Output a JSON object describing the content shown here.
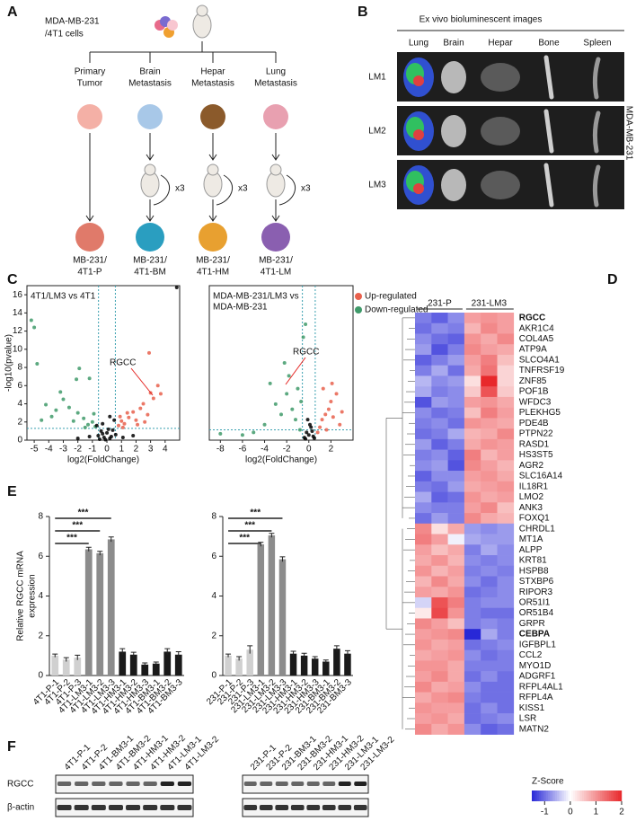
{
  "panel_labels": [
    "A",
    "B",
    "C",
    "D",
    "E",
    "F"
  ],
  "diagram": {
    "source": [
      "MDA-MB-231",
      "/4T1 cells"
    ],
    "repeat": "x3",
    "branches": [
      {
        "label": [
          "Primary",
          "Tumor"
        ],
        "result": [
          "MB-231/",
          "4T1-P"
        ]
      },
      {
        "label": [
          "Brain",
          "Metastasis"
        ],
        "result": [
          "MB-231/",
          "4T1-BM"
        ]
      },
      {
        "label": [
          "Hepar",
          "Metastasis"
        ],
        "result": [
          "MB-231/",
          "4T1-HM"
        ]
      },
      {
        "label": [
          "Lung",
          "Metastasis"
        ],
        "result": [
          "MB-231/",
          "4T1-LM"
        ]
      }
    ]
  },
  "imaging": {
    "title": "Ex vivo bioluminescent images",
    "organs": [
      "Lung",
      "Brain",
      "Hepar",
      "Bone",
      "Spleen"
    ],
    "rows": [
      "LM1",
      "LM2",
      "LM3"
    ],
    "cell_line": "MDA-MB-231"
  },
  "chart_data": [
    {
      "type": "scatter",
      "title": [
        "4T1/LM3 vs 4T1"
      ],
      "xlabel": "log2(FoldChange)",
      "ylabel": "-log10(pvalue)",
      "xlim": [
        -5.5,
        5
      ],
      "xticks": [
        -5,
        -4,
        -3,
        -2,
        -1,
        0,
        1,
        2,
        3,
        4
      ],
      "ylim": [
        0,
        17
      ],
      "yticks": [
        0,
        2,
        4,
        6,
        8,
        10,
        12,
        14,
        16
      ],
      "thresholds": {
        "x": [
          -0.58,
          0.58
        ],
        "y": 1.3
      },
      "annotation": "RGCC",
      "series": [
        {
          "name": "Up-regulated",
          "color": "#e8604c",
          "x": [
            0.8,
            1.0,
            1.2,
            1.5,
            1.8,
            2.0,
            2.3,
            2.5,
            2.8,
            3.0,
            3.2,
            3.5,
            3.7,
            1.1,
            1.4,
            2.1,
            2.6,
            0.9,
            2.9
          ],
          "values": [
            1.6,
            2.1,
            1.8,
            2.5,
            3.1,
            2.2,
            3.5,
            4.0,
            2.8,
            5.2,
            4.6,
            6.0,
            5.1,
            1.4,
            3.0,
            1.7,
            2.0,
            2.6,
            9.6
          ]
        },
        {
          "name": "Down-regulated",
          "color": "#3f9a6a",
          "x": [
            -0.8,
            -1.0,
            -1.3,
            -1.6,
            -2.0,
            -2.3,
            -2.6,
            -3.0,
            -3.2,
            -3.5,
            -3.8,
            -4.2,
            -4.5,
            -1.2,
            -1.9,
            -2.1,
            -5.2,
            -5.0,
            -4.8,
            -0.9,
            -1.5
          ],
          "values": [
            1.5,
            2.0,
            1.7,
            2.4,
            3.0,
            2.1,
            3.6,
            4.5,
            5.3,
            3.3,
            2.6,
            3.9,
            2.2,
            6.8,
            7.9,
            6.7,
            13.2,
            12.4,
            8.4,
            2.9,
            1.4
          ]
        },
        {
          "color": "#000000",
          "x": [
            -0.6,
            -0.4,
            -0.2,
            0,
            0.2,
            0.4,
            0.6,
            -0.5,
            0.1,
            -0.1,
            0.3,
            -0.3,
            -1.2,
            1.1,
            -2,
            1.8,
            -0.7,
            0.5,
            -0.3,
            0.2,
            4.8
          ],
          "values": [
            0.5,
            1.0,
            0.3,
            0.8,
            0.2,
            1.1,
            0.6,
            0.1,
            1.2,
            0.05,
            0.4,
            0.7,
            0.4,
            0.3,
            0.2,
            0.5,
            1.6,
            2.2,
            1.8,
            2.6,
            16.8
          ]
        }
      ]
    },
    {
      "type": "scatter",
      "title": [
        "MDA-MB-231/LM3 vs",
        "MDA-MB-231"
      ],
      "xlabel": "log2(FoldChange)",
      "legend": "upper right",
      "xlim": [
        -9,
        4
      ],
      "xticks": [
        -8,
        -6,
        -4,
        -2,
        0,
        2
      ],
      "ylim": [
        0,
        60
      ],
      "thresholds": {
        "x": [
          -0.58,
          0.58
        ],
        "y": 4
      },
      "annotation": "RGCC",
      "series": [
        {
          "name": "Up-regulated",
          "color": "#e8604c",
          "x": [
            0.8,
            1.0,
            1.2,
            1.5,
            1.8,
            2.0,
            2.2,
            2.5,
            1.3,
            2.8,
            3.0,
            1.6,
            2.1
          ],
          "values": [
            3,
            5,
            8,
            10,
            12,
            15,
            9,
            18,
            20,
            6,
            11,
            4,
            22
          ]
        },
        {
          "name": "Down-regulated",
          "color": "#3f9a6a",
          "x": [
            -0.8,
            -1.2,
            -1.5,
            -2.0,
            -2.5,
            -3.0,
            -1.8,
            -0.5,
            -0.3,
            -4.0,
            -5.0,
            -6.0,
            -2.2,
            -1.0,
            -3.5,
            -0.7,
            -8.0
          ],
          "values": [
            4,
            8,
            12,
            18,
            10,
            14,
            25,
            40,
            45,
            6,
            3,
            2,
            30,
            20,
            22,
            15,
            2.5
          ]
        },
        {
          "color": "#000000",
          "x": [
            -0.4,
            -0.2,
            0,
            0.2,
            0.4,
            -0.1,
            0.1,
            0.3,
            -0.3,
            0.5
          ],
          "values": [
            1,
            3,
            2,
            5,
            1.5,
            8,
            6,
            3.5,
            0.5,
            0.8
          ]
        }
      ]
    },
    {
      "type": "bar",
      "ylabel": [
        "Relative  RGCC mRNA",
        "expression"
      ],
      "categories": [
        "4T1-P-1",
        "4T1-P-2",
        "4T1-P-3",
        "4T1-LM3-1",
        "4T1-LM3-2",
        "4T1-LM3-3",
        "4T1-HM3-1",
        "4T1-HM3-2",
        "4T1-HM3-3",
        "4T1-BM3-1",
        "4T1-BM3-2",
        "4T1-BM3-3"
      ],
      "values": [
        1.0,
        0.8,
        0.9,
        6.35,
        6.15,
        6.85,
        1.2,
        1.05,
        0.55,
        0.6,
        1.2,
        1.05
      ],
      "errors": [
        0.08,
        0.1,
        0.12,
        0.1,
        0.1,
        0.12,
        0.15,
        0.12,
        0.08,
        0.08,
        0.15,
        0.15
      ],
      "colors": [
        "#d0d0d0",
        "#d0d0d0",
        "#d0d0d0",
        "#8c8c8c",
        "#8c8c8c",
        "#8c8c8c",
        "#1a1a1a",
        "#1a1a1a",
        "#1a1a1a",
        "#1a1a1a",
        "#1a1a1a",
        "#1a1a1a"
      ],
      "ylim": [
        0,
        8
      ],
      "yticks": [
        0,
        2,
        4,
        6,
        8
      ],
      "significance": [
        "***",
        "***",
        "***"
      ]
    },
    {
      "type": "bar",
      "categories": [
        "231-P-1",
        "231-P-2",
        "231-P-3",
        "231-LM3-1",
        "231-LM3-2",
        "231-LM3-3",
        "231-HM3-1",
        "231-HM3-2",
        "231-HM3-3",
        "231-BM3-1",
        "231-BM3-2",
        "231-BM3-3"
      ],
      "values": [
        1.0,
        0.85,
        1.3,
        6.6,
        7.05,
        5.85,
        1.1,
        1.0,
        0.85,
        0.7,
        1.35,
        1.1
      ],
      "errors": [
        0.08,
        0.1,
        0.2,
        0.1,
        0.1,
        0.12,
        0.12,
        0.12,
        0.1,
        0.08,
        0.15,
        0.15
      ],
      "colors": [
        "#d0d0d0",
        "#d0d0d0",
        "#d0d0d0",
        "#8c8c8c",
        "#8c8c8c",
        "#8c8c8c",
        "#1a1a1a",
        "#1a1a1a",
        "#1a1a1a",
        "#1a1a1a",
        "#1a1a1a",
        "#1a1a1a"
      ],
      "ylim": [
        0,
        8
      ],
      "yticks": [
        0,
        2,
        4,
        6,
        8
      ],
      "significance": [
        "***",
        "***",
        "***"
      ]
    }
  ],
  "heatmap": {
    "groups": [
      "231-P",
      "231-LM3"
    ],
    "legend_title": "Z-Score",
    "clim": [
      -1.5,
      2
    ],
    "ticks": [
      -1,
      0,
      1,
      2
    ],
    "genes": [
      {
        "name": "RGCC",
        "color": "#e52421"
      },
      {
        "name": "AKR1C4"
      },
      {
        "name": "COL4A5"
      },
      {
        "name": "ATP9A"
      },
      {
        "name": "SLCO4A1"
      },
      {
        "name": "TNFRSF19"
      },
      {
        "name": "ZNF85"
      },
      {
        "name": "POF1B"
      },
      {
        "name": "WFDC3"
      },
      {
        "name": "PLEKHG5"
      },
      {
        "name": "PDE4B"
      },
      {
        "name": "PTPN22"
      },
      {
        "name": "RASD1"
      },
      {
        "name": "HS3ST5"
      },
      {
        "name": "AGR2"
      },
      {
        "name": "SLC16A14"
      },
      {
        "name": "IL18R1"
      },
      {
        "name": "LMO2"
      },
      {
        "name": "ANK3"
      },
      {
        "name": "FOXQ1"
      },
      {
        "name": "CHRDL1"
      },
      {
        "name": "MT1A"
      },
      {
        "name": "ALPP"
      },
      {
        "name": "KRT81"
      },
      {
        "name": "HSPB8"
      },
      {
        "name": "STXBP6"
      },
      {
        "name": "RIPOR3"
      },
      {
        "name": "OR51I1"
      },
      {
        "name": "OR51B4"
      },
      {
        "name": "GRPR"
      },
      {
        "name": "CEBPA",
        "color": "#2aa5dd"
      },
      {
        "name": "IGFBPL1"
      },
      {
        "name": "CCL2"
      },
      {
        "name": "MYO1D"
      },
      {
        "name": "ADGRF1"
      },
      {
        "name": "RFPL4AL1"
      },
      {
        "name": "RFPL4A"
      },
      {
        "name": "KISS1"
      },
      {
        "name": "LSR"
      },
      {
        "name": "MATN2"
      }
    ],
    "values": [
      [
        -0.9,
        -1.1,
        -0.8,
        0.9,
        1.0,
        0.9
      ],
      [
        -1.0,
        -0.8,
        -0.9,
        0.7,
        1.1,
        0.9
      ],
      [
        -0.8,
        -1.0,
        -1.1,
        1.0,
        0.8,
        1.1
      ],
      [
        -0.7,
        -1.2,
        -0.9,
        1.1,
        0.9,
        0.8
      ],
      [
        -1.1,
        -0.9,
        -0.7,
        0.9,
        1.2,
        0.6
      ],
      [
        -0.9,
        -0.6,
        -1.0,
        0.8,
        1.3,
        0.4
      ],
      [
        -0.5,
        -0.8,
        -0.7,
        0.3,
        2.0,
        0.4
      ],
      [
        -0.6,
        -0.9,
        -0.8,
        0.5,
        1.6,
        0.5
      ],
      [
        -1.2,
        -0.7,
        -0.8,
        0.9,
        1.0,
        0.8
      ],
      [
        -0.8,
        -1.0,
        -0.9,
        0.6,
        1.2,
        0.9
      ],
      [
        -0.9,
        -0.8,
        -1.0,
        1.0,
        0.9,
        0.8
      ],
      [
        -1.0,
        -0.9,
        -0.6,
        0.7,
        0.8,
        1.1
      ],
      [
        -0.7,
        -1.1,
        -0.9,
        0.8,
        1.0,
        0.9
      ],
      [
        -0.9,
        -0.8,
        -1.1,
        1.2,
        0.7,
        0.9
      ],
      [
        -0.8,
        -0.7,
        -1.2,
        1.1,
        0.9,
        0.7
      ],
      [
        -1.1,
        -0.8,
        -0.8,
        0.9,
        1.0,
        0.8
      ],
      [
        -0.9,
        -1.0,
        -0.7,
        0.8,
        0.9,
        1.0
      ],
      [
        -0.6,
        -1.1,
        -1.0,
        1.0,
        0.8,
        0.9
      ],
      [
        -0.8,
        -0.9,
        -0.9,
        0.9,
        1.1,
        0.6
      ],
      [
        -1.0,
        -0.7,
        -0.9,
        1.1,
        0.8,
        0.7
      ],
      [
        1.1,
        0.3,
        0.8,
        -0.7,
        -0.8,
        -0.7
      ],
      [
        1.2,
        0.9,
        -0.1,
        -0.6,
        -0.7,
        -0.7
      ],
      [
        0.9,
        0.6,
        0.8,
        -0.9,
        -0.6,
        -0.8
      ],
      [
        0.8,
        1.0,
        0.7,
        -0.8,
        -0.9,
        -0.8
      ],
      [
        1.0,
        0.7,
        0.9,
        -0.9,
        -0.8,
        -0.9
      ],
      [
        0.7,
        1.1,
        0.8,
        -0.8,
        -1.0,
        -0.8
      ],
      [
        0.9,
        0.8,
        1.0,
        -1.0,
        -0.9,
        -0.8
      ],
      [
        -0.3,
        1.6,
        1.2,
        -0.9,
        -0.8,
        -0.8
      ],
      [
        0.2,
        1.7,
        1.0,
        -0.9,
        -1.0,
        -1.0
      ],
      [
        1.1,
        0.9,
        0.6,
        -0.9,
        -0.8,
        -0.9
      ],
      [
        0.9,
        1.0,
        1.1,
        -1.5,
        -0.6,
        -0.9
      ],
      [
        1.0,
        0.8,
        0.9,
        -1.0,
        -0.9,
        -0.8
      ],
      [
        0.8,
        0.9,
        1.0,
        -0.8,
        -1.0,
        -0.9
      ],
      [
        1.0,
        1.0,
        0.8,
        -0.9,
        -0.9,
        -0.9
      ],
      [
        0.9,
        1.1,
        0.8,
        -1.0,
        -0.8,
        -1.0
      ],
      [
        1.1,
        0.8,
        0.9,
        -0.8,
        -1.0,
        -1.0
      ],
      [
        0.8,
        1.0,
        1.1,
        -0.9,
        -1.0,
        -1.0
      ],
      [
        1.0,
        0.9,
        0.9,
        -1.0,
        -0.8,
        -1.0
      ],
      [
        0.9,
        1.0,
        0.8,
        -1.0,
        -0.9,
        -0.8
      ],
      [
        1.1,
        0.8,
        1.0,
        -0.8,
        -1.1,
        -1.0
      ]
    ]
  },
  "blot": {
    "rows": [
      "RGCC",
      "β-actin"
    ],
    "lanes_left": [
      "4T1-P-1",
      "4T1-P-2",
      "4T1-BM3-1",
      "4T1-BM3-2",
      "4T1-HM3-1",
      "4T1-HM3-2",
      "4T1-LM3-1",
      "4T1-LM3-2"
    ],
    "lanes_right": [
      "231-P-1",
      "231-P-2",
      "231-BM3-1",
      "231-BM3-2",
      "231-HM3-1",
      "231-HM3-2",
      "231-LM3-1",
      "231-LM3-2"
    ]
  }
}
